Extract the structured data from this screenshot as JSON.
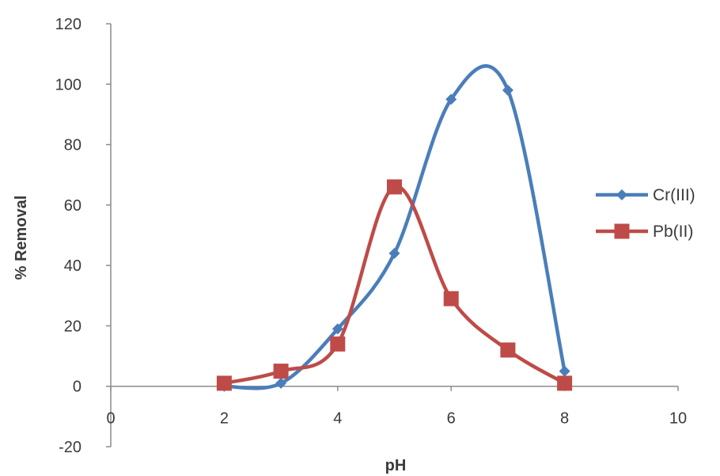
{
  "chart_data": {
    "type": "scatter",
    "title": "",
    "xlabel": "pH",
    "ylabel": "% Removal",
    "xlim": [
      0,
      10
    ],
    "ylim": [
      -20,
      120
    ],
    "x_ticks": [
      0,
      2,
      4,
      6,
      8,
      10
    ],
    "y_ticks": [
      -20,
      0,
      20,
      40,
      60,
      80,
      100,
      120
    ],
    "grid": false,
    "legend": "right",
    "series": [
      {
        "name": "Cr(III)",
        "color": "#4a7ebb",
        "marker": "diamond",
        "line": "smooth",
        "x": [
          2,
          3,
          4,
          5,
          6,
          7,
          8
        ],
        "y": [
          0,
          1,
          19,
          44,
          95,
          98,
          5
        ]
      },
      {
        "name": "Pb(II)",
        "color": "#be4b48",
        "marker": "square",
        "line": "smooth",
        "x": [
          2,
          3,
          4,
          5,
          6,
          7,
          8
        ],
        "y": [
          1,
          5,
          14,
          66,
          29,
          12,
          1
        ]
      }
    ]
  }
}
